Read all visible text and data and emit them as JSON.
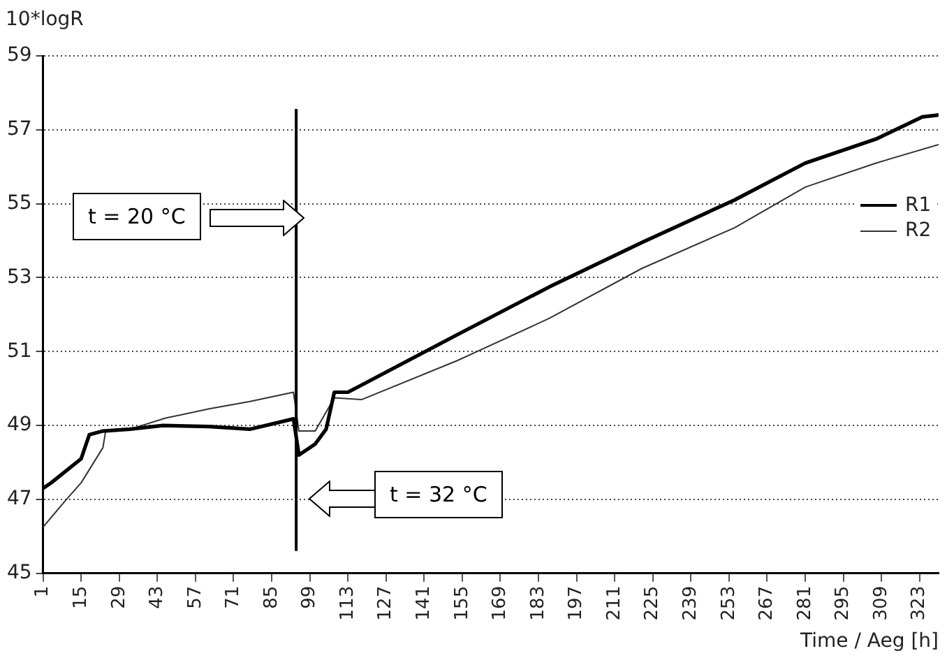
{
  "chart_data": {
    "type": "line",
    "ylabel": "10*logR",
    "xlabel": "Time / Aeg [h]",
    "xlim": [
      1,
      330
    ],
    "xticks": [
      1,
      15,
      29,
      43,
      57,
      71,
      85,
      99,
      113,
      127,
      141,
      155,
      169,
      183,
      197,
      211,
      225,
      239,
      253,
      267,
      281,
      295,
      309,
      323
    ],
    "ylim": [
      45,
      59
    ],
    "yticks": [
      45,
      47,
      49,
      51,
      53,
      55,
      57,
      59
    ],
    "grid": "y",
    "legend": "right",
    "marker": "none",
    "line_style": "solid",
    "ref_lines": [
      {
        "axis": "x",
        "value": 94,
        "color": "#000000"
      }
    ],
    "annotations": [
      "t = 20 °C",
      "t = 32 °C"
    ],
    "series": [
      {
        "name": "R1",
        "color": "#000000",
        "x": [
          1,
          4,
          15,
          18,
          23,
          33,
          45,
          62,
          77,
          93,
          95,
          101,
          105,
          108,
          113,
          153,
          187,
          221,
          255,
          281,
          307,
          324,
          330
        ],
        "values": [
          47.3,
          47.45,
          48.1,
          48.75,
          48.85,
          48.9,
          49.0,
          48.97,
          48.9,
          49.18,
          48.2,
          48.5,
          48.9,
          49.9,
          49.9,
          51.45,
          52.75,
          53.95,
          55.1,
          56.1,
          56.75,
          57.35,
          57.4
        ]
      },
      {
        "name": "R2",
        "color": "#333333",
        "x": [
          1,
          9,
          15,
          23,
          24,
          33,
          46,
          62,
          77,
          93,
          95,
          101,
          108,
          118,
          153,
          187,
          221,
          255,
          281,
          307,
          330
        ],
        "values": [
          46.25,
          46.95,
          47.45,
          48.4,
          48.85,
          48.9,
          49.2,
          49.45,
          49.65,
          49.9,
          48.85,
          48.85,
          49.75,
          49.7,
          50.75,
          51.9,
          53.25,
          54.35,
          55.45,
          56.1,
          56.6
        ]
      }
    ]
  }
}
